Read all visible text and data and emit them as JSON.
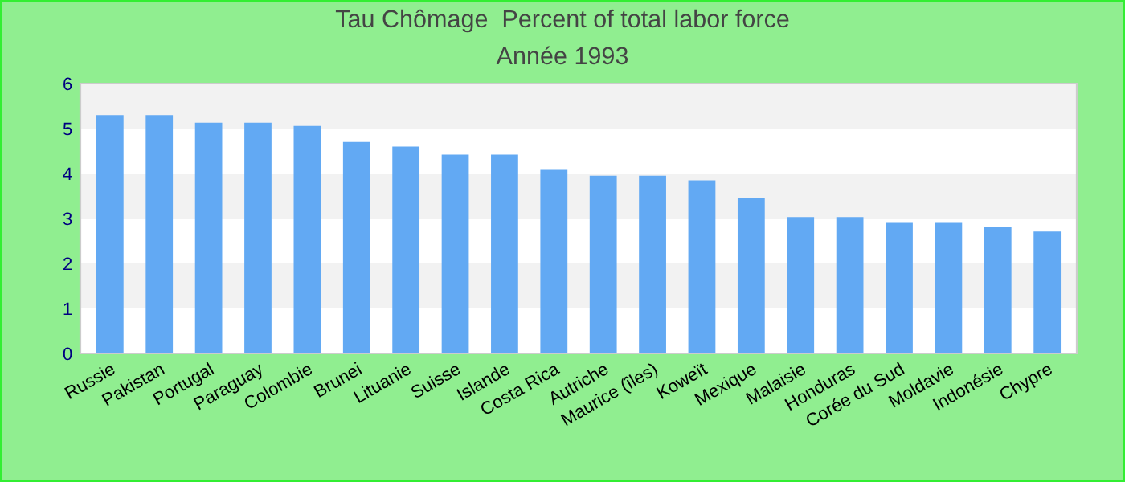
{
  "chart_data": {
    "type": "bar",
    "title": "Tau Chômage  Percent of total labor force",
    "subtitle": "Année 1993",
    "categories": [
      "Russie",
      "Pakistan",
      "Portugal",
      "Paraguay",
      "Colombie",
      "Brunei",
      "Lituanie",
      "Suisse",
      "Islande",
      "Costa Rica",
      "Autriche",
      "Maurice (îles)",
      "Koweït",
      "Mexique",
      "Malaisie",
      "Honduras",
      "Corée du Sud",
      "Moldavie",
      "Indonésie",
      "Chypre"
    ],
    "values": [
      5.3,
      5.3,
      5.13,
      5.13,
      5.06,
      4.7,
      4.6,
      4.42,
      4.42,
      4.1,
      3.95,
      3.95,
      3.85,
      3.46,
      3.03,
      3.03,
      2.92,
      2.92,
      2.81,
      2.71
    ],
    "color": "#62a9f3",
    "ylim": [
      0,
      6
    ],
    "yticks": [
      0,
      1,
      2,
      3,
      4,
      5,
      6
    ],
    "legend": false
  }
}
